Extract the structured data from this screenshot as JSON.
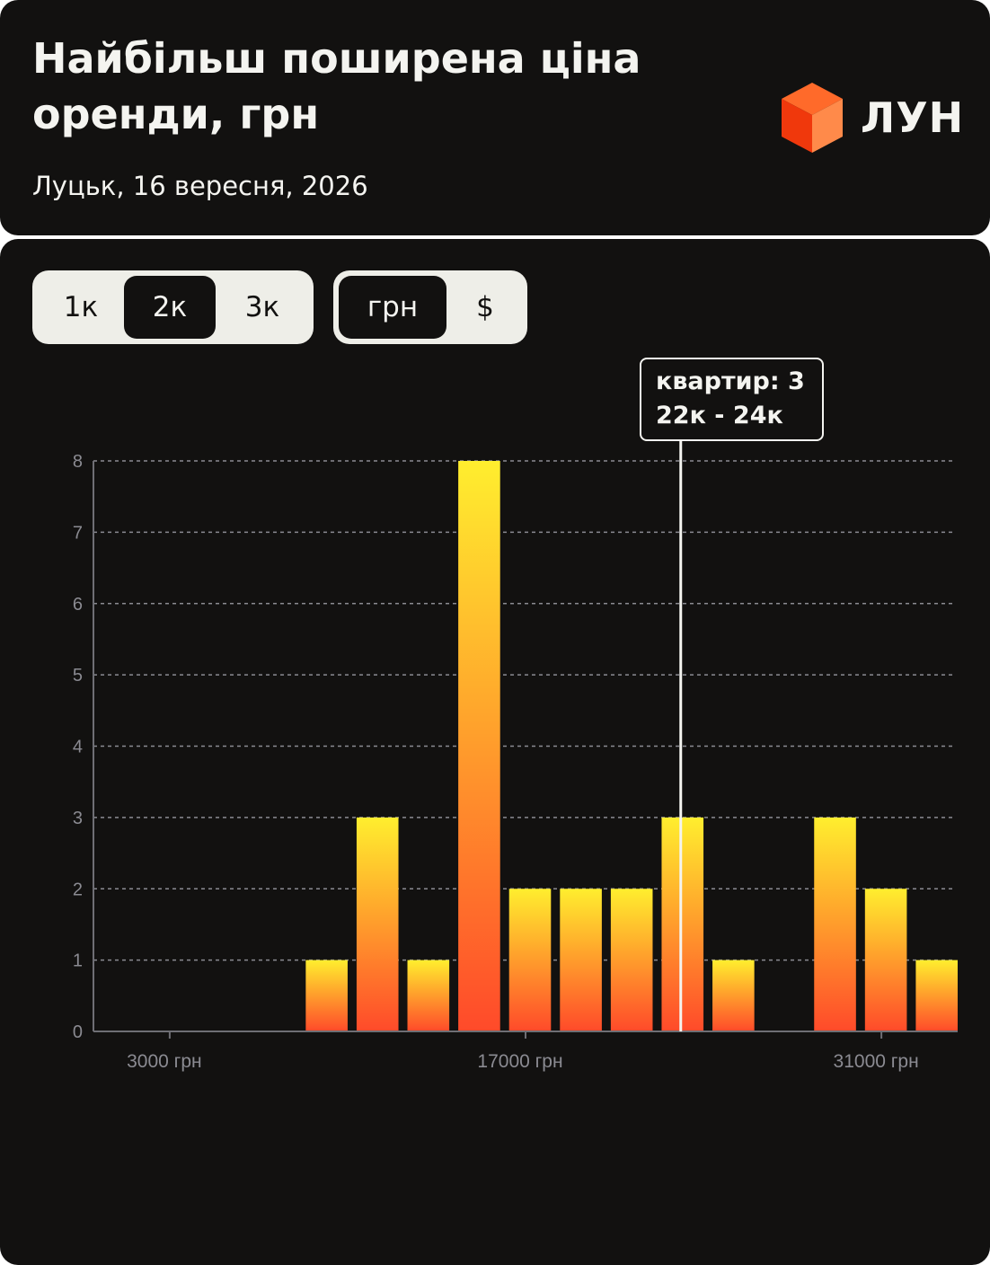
{
  "header": {
    "title": "Найбільш поширена ціна оренди, грн",
    "subtitle": "Луцьк, 16 вересня, 2026",
    "logo_text": "ЛУН"
  },
  "rooms_toggle": {
    "options": [
      "1к",
      "2к",
      "3к"
    ],
    "selected": "2к"
  },
  "currency_toggle": {
    "options": [
      "грн",
      "$"
    ],
    "selected": "грн"
  },
  "tooltip": {
    "line1": "квартир: 3",
    "line2": "22к - 24к"
  },
  "colors": {
    "background": "#121110",
    "text": "#f4f4f0",
    "bar_top": "#ffee2e",
    "bar_bottom": "#ff4a2a",
    "grid": "#8b8b92",
    "logo_orange": "#ff5a1f"
  },
  "chart_data": {
    "type": "bar",
    "x_unit": "грн",
    "bin_width": 2000,
    "bins": [
      {
        "from": 0,
        "to": 2000,
        "count": 0
      },
      {
        "from": 2000,
        "to": 4000,
        "count": 0
      },
      {
        "from": 4000,
        "to": 6000,
        "count": 0
      },
      {
        "from": 6000,
        "to": 8000,
        "count": 0
      },
      {
        "from": 8000,
        "to": 10000,
        "count": 1
      },
      {
        "from": 10000,
        "to": 12000,
        "count": 3
      },
      {
        "from": 12000,
        "to": 14000,
        "count": 1
      },
      {
        "from": 14000,
        "to": 16000,
        "count": 8
      },
      {
        "from": 16000,
        "to": 18000,
        "count": 2
      },
      {
        "from": 18000,
        "to": 20000,
        "count": 2
      },
      {
        "from": 20000,
        "to": 22000,
        "count": 2
      },
      {
        "from": 22000,
        "to": 24000,
        "count": 3
      },
      {
        "from": 24000,
        "to": 26000,
        "count": 1
      },
      {
        "from": 26000,
        "to": 28000,
        "count": 0
      },
      {
        "from": 28000,
        "to": 30000,
        "count": 3
      },
      {
        "from": 30000,
        "to": 32000,
        "count": 2
      },
      {
        "from": 32000,
        "to": 34000,
        "count": 1
      }
    ],
    "x_ticks": [
      {
        "value": 3000,
        "label": "3000 грн"
      },
      {
        "value": 17000,
        "label": "17000 грн"
      },
      {
        "value": 31000,
        "label": "31000 грн"
      }
    ],
    "y_ticks": [
      0,
      1,
      2,
      3,
      4,
      5,
      6,
      7,
      8
    ],
    "ylim": [
      0,
      8
    ],
    "xlim": [
      0,
      34000
    ],
    "grid": true,
    "highlighted_bin": 11
  }
}
